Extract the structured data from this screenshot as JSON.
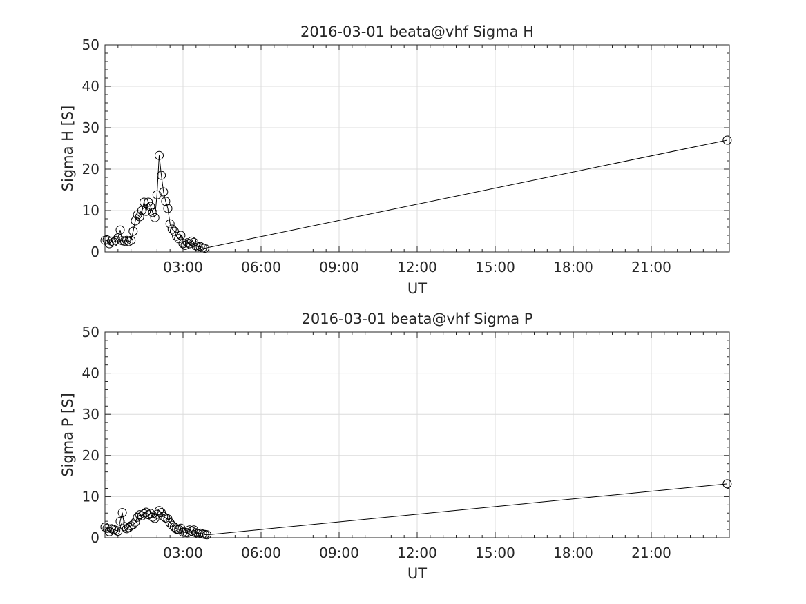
{
  "chart_data": [
    {
      "type": "line",
      "title": "2016-03-01  beata@vhf Sigma H",
      "xlabel": "UT",
      "ylabel": "Sigma H [S]",
      "xlim": [
        "00:00",
        "24:00"
      ],
      "ylim": [
        0,
        50
      ],
      "x_ticks": [
        "03:00",
        "06:00",
        "09:00",
        "12:00",
        "15:00",
        "18:00",
        "21:00"
      ],
      "y_ticks": [
        "0",
        "10",
        "20",
        "30",
        "40",
        "50"
      ],
      "grid": true,
      "marker": "open-circle",
      "color": "#000000",
      "series": [
        {
          "x": [
            "00:00",
            "00:05",
            "00:10",
            "00:15",
            "00:20",
            "00:25",
            "00:30",
            "00:35",
            "00:40",
            "00:45",
            "00:50",
            "00:55",
            "01:00",
            "01:05",
            "01:10",
            "01:15",
            "01:20",
            "01:25",
            "01:30",
            "01:35",
            "01:40",
            "01:45",
            "01:50",
            "01:55",
            "02:00",
            "02:05",
            "02:10",
            "02:15",
            "02:20",
            "02:25",
            "02:30",
            "02:35",
            "02:40",
            "02:45",
            "02:50",
            "02:55",
            "03:00",
            "03:05",
            "03:10",
            "03:15",
            "03:20",
            "03:25",
            "03:30",
            "03:35",
            "03:40",
            "03:45",
            "03:50",
            "23:55"
          ],
          "y": [
            2.8,
            2.9,
            2.0,
            2.6,
            2.4,
            2.8,
            3.4,
            5.3,
            2.7,
            2.6,
            2.8,
            2.5,
            2.8,
            5.0,
            7.5,
            9.0,
            8.5,
            10.0,
            12.0,
            9.8,
            12.0,
            11.0,
            9.5,
            8.3,
            13.8,
            23.3,
            18.5,
            14.5,
            12.2,
            10.5,
            6.8,
            5.5,
            5.0,
            3.8,
            3.2,
            4.0,
            2.0,
            1.6,
            2.2,
            2.0,
            2.6,
            2.3,
            1.5,
            1.2,
            1.3,
            1.0,
            0.9,
            27.0
          ]
        }
      ]
    },
    {
      "type": "line",
      "title": "2016-03-01  beata@vhf Sigma P",
      "xlabel": "UT",
      "ylabel": "Sigma P [S]",
      "xlim": [
        "00:00",
        "24:00"
      ],
      "ylim": [
        0,
        50
      ],
      "x_ticks": [
        "03:00",
        "06:00",
        "09:00",
        "12:00",
        "15:00",
        "18:00",
        "21:00"
      ],
      "y_ticks": [
        "0",
        "10",
        "20",
        "30",
        "40",
        "50"
      ],
      "grid": true,
      "marker": "open-circle",
      "color": "#000000",
      "series": [
        {
          "x": [
            "00:00",
            "00:05",
            "00:10",
            "00:15",
            "00:20",
            "00:25",
            "00:30",
            "00:35",
            "00:40",
            "00:45",
            "00:50",
            "00:55",
            "01:00",
            "01:05",
            "01:10",
            "01:15",
            "01:20",
            "01:25",
            "01:30",
            "01:35",
            "01:40",
            "01:45",
            "01:50",
            "01:55",
            "02:00",
            "02:05",
            "02:10",
            "02:15",
            "02:20",
            "02:25",
            "02:30",
            "02:35",
            "02:40",
            "02:45",
            "02:50",
            "02:55",
            "03:00",
            "03:05",
            "03:10",
            "03:15",
            "03:20",
            "03:25",
            "03:30",
            "03:35",
            "03:40",
            "03:45",
            "03:50",
            "03:55",
            "23:55"
          ],
          "y": [
            2.6,
            2.3,
            1.5,
            2.2,
            2.0,
            1.8,
            1.6,
            4.0,
            6.1,
            2.7,
            2.2,
            2.5,
            2.9,
            3.2,
            3.8,
            5.0,
            5.6,
            5.3,
            5.8,
            6.2,
            5.6,
            5.9,
            5.0,
            4.7,
            5.7,
            6.6,
            6.1,
            5.2,
            4.8,
            4.6,
            3.6,
            3.0,
            2.6,
            2.1,
            2.0,
            2.3,
            1.4,
            1.3,
            1.2,
            1.9,
            1.6,
            1.9,
            1.2,
            1.0,
            1.1,
            0.9,
            0.8,
            0.7,
            13.1
          ]
        }
      ]
    }
  ]
}
